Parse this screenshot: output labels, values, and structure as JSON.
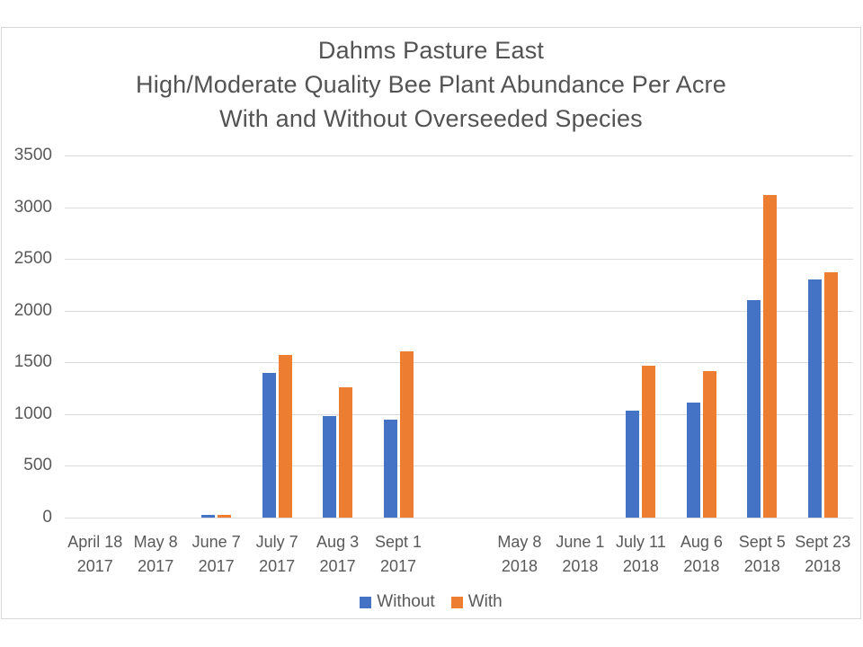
{
  "chart_data": {
    "type": "bar",
    "title_lines": [
      "Dahms Pasture East",
      "High/Moderate Quality Bee Plant Abundance Per Acre",
      "With and Without Overseeded Species"
    ],
    "categories": [
      {
        "date": "April 18",
        "year": "2017"
      },
      {
        "date": "May 8",
        "year": "2017"
      },
      {
        "date": "June 7",
        "year": "2017"
      },
      {
        "date": "July 7",
        "year": "2017"
      },
      {
        "date": "Aug 3",
        "year": "2017"
      },
      {
        "date": "Sept 1",
        "year": "2017"
      },
      {
        "date": "",
        "year": ""
      },
      {
        "date": "May 8",
        "year": "2018"
      },
      {
        "date": "June 1",
        "year": "2018"
      },
      {
        "date": "July 11",
        "year": "2018"
      },
      {
        "date": "Aug 6",
        "year": "2018"
      },
      {
        "date": "Sept 5",
        "year": "2018"
      },
      {
        "date": "Sept 23",
        "year": "2018"
      }
    ],
    "series": [
      {
        "name": "Without",
        "color": "#4472C4",
        "values": [
          0,
          0,
          30,
          1400,
          980,
          950,
          null,
          0,
          0,
          1030,
          1110,
          2100,
          2300
        ]
      },
      {
        "name": "With",
        "color": "#ED7D31",
        "values": [
          0,
          0,
          30,
          1570,
          1260,
          1610,
          null,
          0,
          0,
          1470,
          1420,
          3120,
          2370
        ]
      }
    ],
    "y_axis": {
      "min": 0,
      "max": 3500,
      "step": 500
    },
    "grid": true,
    "legend_position": "bottom",
    "colors": {
      "grid": "#DCDCDC",
      "axis_text": "#595959",
      "title_text": "#535353",
      "frame_border": "#D9D9D9",
      "background": "#FFFFFF"
    }
  }
}
